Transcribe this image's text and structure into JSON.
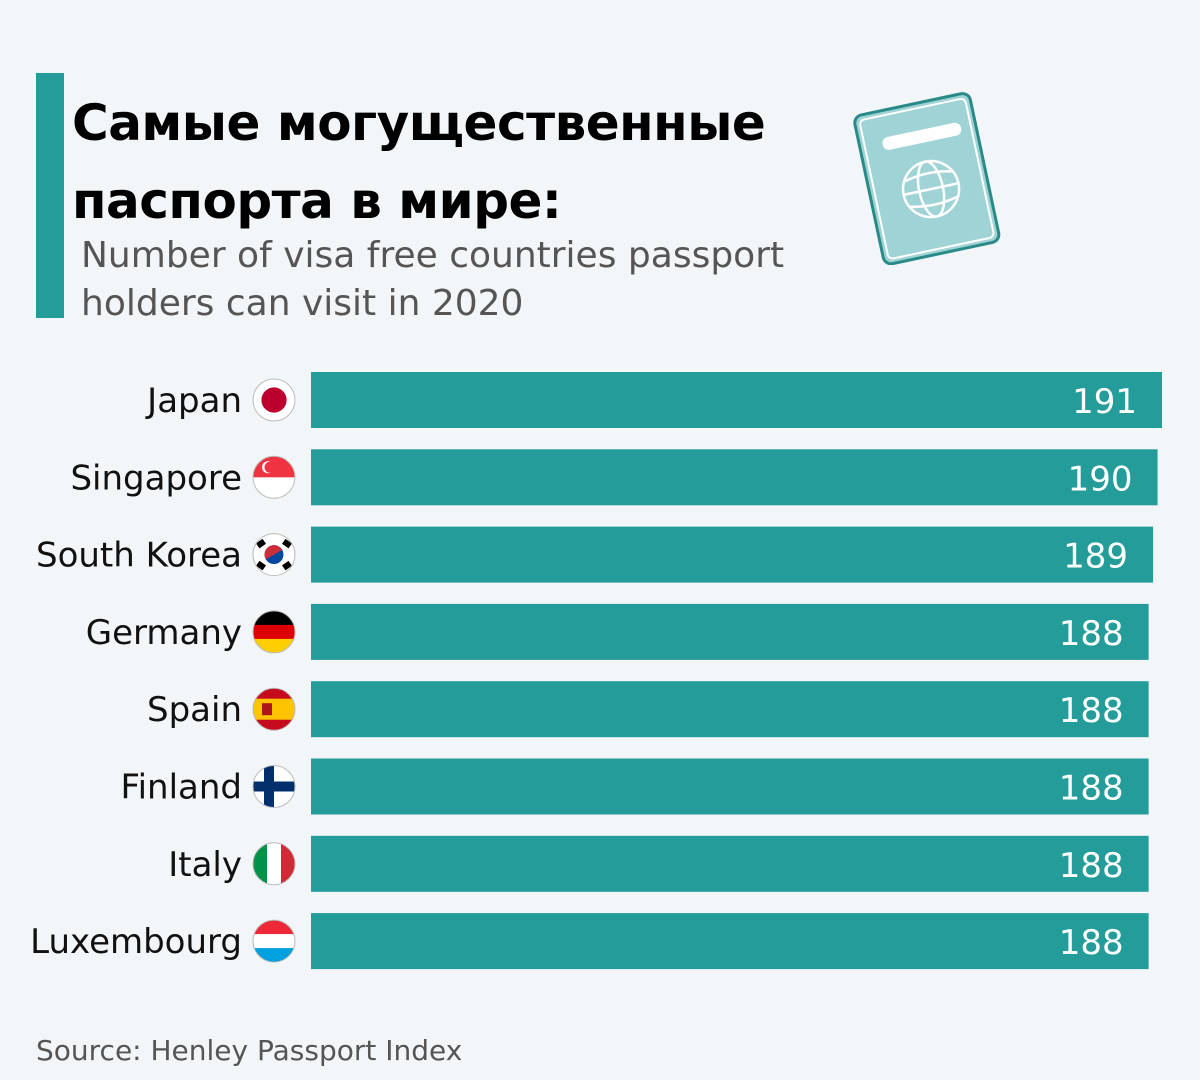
{
  "title_line1": "Самые могущественные",
  "title_line2": "паспорта в мире:",
  "subtitle_line1": "Number of visa free countries passport",
  "subtitle_line2": "holders can visit in 2020",
  "source": "Source: Henley Passport Index",
  "icon": "passport-icon",
  "colors": {
    "bar": "#239c9a",
    "accent": "#239c9a",
    "background": "#f3f6f9",
    "passport": "#9fd3d6"
  },
  "chart_data": {
    "type": "bar",
    "orientation": "horizontal",
    "categories": [
      "Japan",
      "Singapore",
      "South Korea",
      "Germany",
      "Spain",
      "Finland",
      "Italy",
      "Luxembourg"
    ],
    "values": [
      191,
      190,
      189,
      188,
      188,
      188,
      188,
      188
    ],
    "flags": [
      "japan-flag-icon",
      "singapore-flag-icon",
      "south-korea-flag-icon",
      "germany-flag-icon",
      "spain-flag-icon",
      "finland-flag-icon",
      "italy-flag-icon",
      "luxembourg-flag-icon"
    ],
    "xlim": [
      0,
      191
    ],
    "grid": false,
    "data_labels": true
  }
}
